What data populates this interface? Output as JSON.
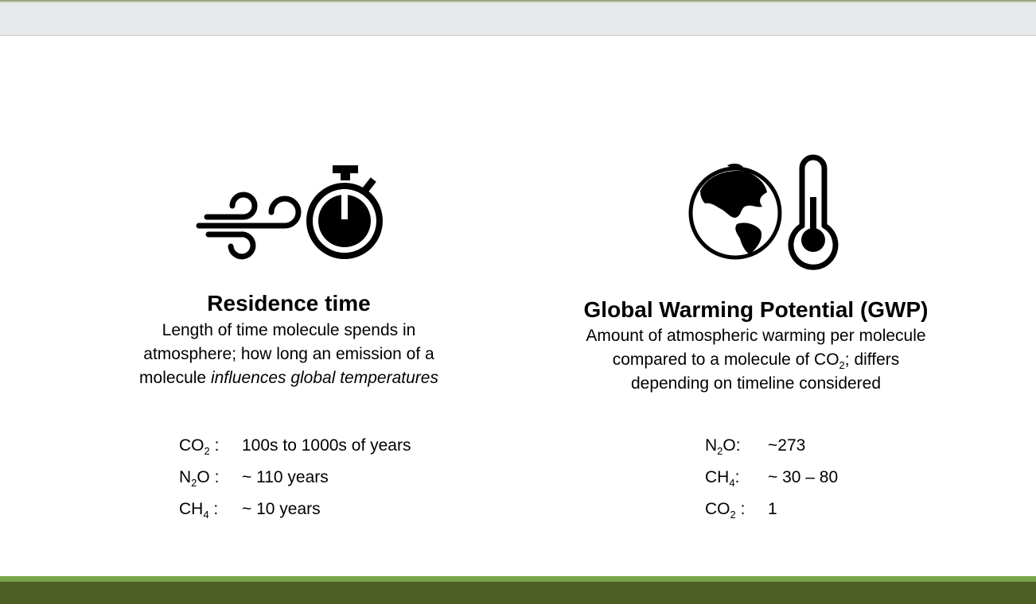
{
  "residence": {
    "title": "Residence time",
    "desc_line1": "Length of time molecule spends in",
    "desc_line2": "atmosphere; how long an emission of a",
    "desc_line3_plain": "molecule ",
    "desc_line3_italic": "influences global temperatures",
    "rows": [
      {
        "main": "CO",
        "sub": "2",
        "suffix": " :",
        "value": "100s to 1000s of years"
      },
      {
        "main": "N",
        "sub": "2",
        "suffix": "O :",
        "value": "~ 110 years"
      },
      {
        "main": "CH",
        "sub": "4",
        "suffix": " :",
        "value": "~ 10 years"
      }
    ],
    "icons": [
      "wind-icon",
      "stopwatch-icon"
    ]
  },
  "gwp": {
    "title": "Global Warming Potential (GWP)",
    "desc_line1": "Amount of atmospheric warming per molecule",
    "desc_line2_pre": "compared to a molecule of CO",
    "desc_line2_sub": "2",
    "desc_line2_post": "; differs",
    "desc_line3": "depending on timeline considered",
    "rows": [
      {
        "main": "N",
        "sub": "2",
        "suffix": "O:",
        "value": "~273"
      },
      {
        "main": "CH",
        "sub": "4",
        "suffix": ":",
        "value": "~ 30 – 80"
      },
      {
        "main": "CO",
        "sub": "2",
        "suffix": " :",
        "value": "1"
      }
    ],
    "icons": [
      "globe-icon",
      "thermometer-icon"
    ]
  }
}
